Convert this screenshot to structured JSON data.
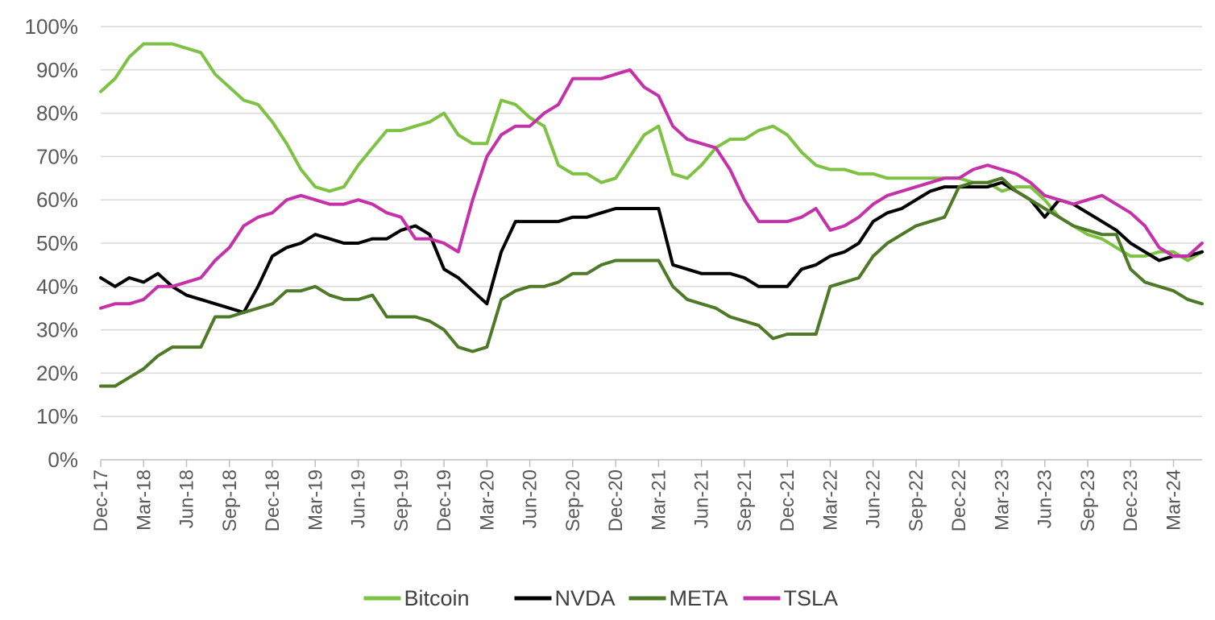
{
  "chart_data": {
    "type": "line",
    "title": "",
    "xlabel": "",
    "ylabel": "",
    "ylim": [
      0,
      100
    ],
    "y_ticks": [
      "0%",
      "10%",
      "20%",
      "30%",
      "40%",
      "50%",
      "60%",
      "70%",
      "80%",
      "90%",
      "100%"
    ],
    "x_ticks": [
      "Dec-17",
      "Mar-18",
      "Jun-18",
      "Sep-18",
      "Dec-18",
      "Mar-19",
      "Jun-19",
      "Sep-19",
      "Dec-19",
      "Mar-20",
      "Jun-20",
      "Sep-20",
      "Dec-20",
      "Mar-21",
      "Jun-21",
      "Sep-21",
      "Dec-21",
      "Mar-22",
      "Jun-22",
      "Sep-22",
      "Dec-22",
      "Mar-23",
      "Jun-23",
      "Sep-23",
      "Dec-23",
      "Mar-24"
    ],
    "x_domain": [
      "Dec-17",
      "May-24"
    ],
    "grid": true,
    "legend_position": "bottom",
    "series": [
      {
        "name": "Bitcoin",
        "color": "#7dc242",
        "x": [
          "Dec-17",
          "Jan-18",
          "Feb-18",
          "Mar-18",
          "Apr-18",
          "May-18",
          "Jun-18",
          "Jul-18",
          "Aug-18",
          "Sep-18",
          "Oct-18",
          "Nov-18",
          "Dec-18",
          "Jan-19",
          "Feb-19",
          "Mar-19",
          "Apr-19",
          "May-19",
          "Jun-19",
          "Jul-19",
          "Aug-19",
          "Sep-19",
          "Oct-19",
          "Nov-19",
          "Dec-19",
          "Jan-20",
          "Feb-20",
          "Mar-20",
          "Apr-20",
          "May-20",
          "Jun-20",
          "Jul-20",
          "Aug-20",
          "Sep-20",
          "Oct-20",
          "Nov-20",
          "Dec-20",
          "Jan-21",
          "Feb-21",
          "Mar-21",
          "Apr-21",
          "May-21",
          "Jun-21",
          "Jul-21",
          "Aug-21",
          "Sep-21",
          "Oct-21",
          "Nov-21",
          "Dec-21",
          "Jan-22",
          "Feb-22",
          "Mar-22",
          "Apr-22",
          "May-22",
          "Jun-22",
          "Jul-22",
          "Aug-22",
          "Sep-22",
          "Oct-22",
          "Nov-22",
          "Dec-22",
          "Jan-23",
          "Feb-23",
          "Mar-23",
          "Apr-23",
          "May-23",
          "Jun-23",
          "Jul-23",
          "Aug-23",
          "Sep-23",
          "Oct-23",
          "Nov-23",
          "Dec-23",
          "Jan-24",
          "Feb-24",
          "Mar-24",
          "Apr-24",
          "May-24"
        ],
        "values": [
          85,
          88,
          93,
          96,
          96,
          96,
          95,
          94,
          89,
          86,
          83,
          82,
          78,
          73,
          67,
          63,
          62,
          63,
          68,
          72,
          76,
          76,
          77,
          78,
          80,
          75,
          73,
          73,
          83,
          82,
          79,
          77,
          68,
          66,
          66,
          64,
          65,
          70,
          75,
          77,
          66,
          65,
          68,
          72,
          74,
          74,
          76,
          77,
          75,
          71,
          68,
          67,
          67,
          66,
          66,
          65,
          65,
          65,
          65,
          65,
          65,
          64,
          64,
          62,
          63,
          63,
          60,
          56,
          54,
          52,
          51,
          49,
          47,
          47,
          48,
          48,
          46,
          48
        ]
      },
      {
        "name": "NVDA",
        "color": "#000000",
        "x": [
          "Dec-17",
          "Jan-18",
          "Feb-18",
          "Mar-18",
          "Apr-18",
          "May-18",
          "Jun-18",
          "Jul-18",
          "Aug-18",
          "Sep-18",
          "Oct-18",
          "Nov-18",
          "Dec-18",
          "Jan-19",
          "Feb-19",
          "Mar-19",
          "Apr-19",
          "May-19",
          "Jun-19",
          "Jul-19",
          "Aug-19",
          "Sep-19",
          "Oct-19",
          "Nov-19",
          "Dec-19",
          "Jan-20",
          "Feb-20",
          "Mar-20",
          "Apr-20",
          "May-20",
          "Jun-20",
          "Jul-20",
          "Aug-20",
          "Sep-20",
          "Oct-20",
          "Nov-20",
          "Dec-20",
          "Jan-21",
          "Feb-21",
          "Mar-21",
          "Apr-21",
          "May-21",
          "Jun-21",
          "Jul-21",
          "Aug-21",
          "Sep-21",
          "Oct-21",
          "Nov-21",
          "Dec-21",
          "Jan-22",
          "Feb-22",
          "Mar-22",
          "Apr-22",
          "May-22",
          "Jun-22",
          "Jul-22",
          "Aug-22",
          "Sep-22",
          "Oct-22",
          "Nov-22",
          "Dec-22",
          "Jan-23",
          "Feb-23",
          "Mar-23",
          "Apr-23",
          "May-23",
          "Jun-23",
          "Jul-23",
          "Aug-23",
          "Sep-23",
          "Oct-23",
          "Nov-23",
          "Dec-23",
          "Jan-24",
          "Feb-24",
          "Mar-24",
          "Apr-24",
          "May-24"
        ],
        "values": [
          42,
          40,
          42,
          41,
          43,
          40,
          38,
          37,
          36,
          35,
          34,
          40,
          47,
          49,
          50,
          52,
          51,
          50,
          50,
          51,
          51,
          53,
          54,
          52,
          44,
          42,
          39,
          36,
          48,
          55,
          55,
          55,
          55,
          56,
          56,
          57,
          58,
          58,
          58,
          58,
          45,
          44,
          43,
          43,
          43,
          42,
          40,
          40,
          40,
          44,
          45,
          47,
          48,
          50,
          55,
          57,
          58,
          60,
          62,
          63,
          63,
          63,
          63,
          64,
          62,
          60,
          56,
          60,
          59,
          57,
          55,
          53,
          50,
          48,
          46,
          47,
          47,
          48
        ]
      },
      {
        "name": "META",
        "color": "#4e7a27",
        "x": [
          "Dec-17",
          "Jan-18",
          "Feb-18",
          "Mar-18",
          "Apr-18",
          "May-18",
          "Jun-18",
          "Jul-18",
          "Aug-18",
          "Sep-18",
          "Oct-18",
          "Nov-18",
          "Dec-18",
          "Jan-19",
          "Feb-19",
          "Mar-19",
          "Apr-19",
          "May-19",
          "Jun-19",
          "Jul-19",
          "Aug-19",
          "Sep-19",
          "Oct-19",
          "Nov-19",
          "Dec-19",
          "Jan-20",
          "Feb-20",
          "Mar-20",
          "Apr-20",
          "May-20",
          "Jun-20",
          "Jul-20",
          "Aug-20",
          "Sep-20",
          "Oct-20",
          "Nov-20",
          "Dec-20",
          "Jan-21",
          "Feb-21",
          "Mar-21",
          "Apr-21",
          "May-21",
          "Jun-21",
          "Jul-21",
          "Aug-21",
          "Sep-21",
          "Oct-21",
          "Nov-21",
          "Dec-21",
          "Jan-22",
          "Feb-22",
          "Mar-22",
          "Apr-22",
          "May-22",
          "Jun-22",
          "Jul-22",
          "Aug-22",
          "Sep-22",
          "Oct-22",
          "Nov-22",
          "Dec-22",
          "Jan-23",
          "Feb-23",
          "Mar-23",
          "Apr-23",
          "May-23",
          "Jun-23",
          "Jul-23",
          "Aug-23",
          "Sep-23",
          "Oct-23",
          "Nov-23",
          "Dec-23",
          "Jan-24",
          "Feb-24",
          "Mar-24",
          "Apr-24",
          "May-24"
        ],
        "values": [
          17,
          17,
          19,
          21,
          24,
          26,
          26,
          26,
          33,
          33,
          34,
          35,
          36,
          39,
          39,
          40,
          38,
          37,
          37,
          38,
          33,
          33,
          33,
          32,
          30,
          26,
          25,
          26,
          37,
          39,
          40,
          40,
          41,
          43,
          43,
          45,
          46,
          46,
          46,
          46,
          40,
          37,
          36,
          35,
          33,
          32,
          31,
          28,
          29,
          29,
          29,
          40,
          41,
          42,
          47,
          50,
          52,
          54,
          55,
          56,
          63,
          64,
          64,
          65,
          62,
          60,
          58,
          56,
          54,
          53,
          52,
          52,
          44,
          41,
          40,
          39,
          37,
          36
        ]
      },
      {
        "name": "TSLA",
        "color": "#c531a9",
        "x": [
          "Dec-17",
          "Jan-18",
          "Feb-18",
          "Mar-18",
          "Apr-18",
          "May-18",
          "Jun-18",
          "Jul-18",
          "Aug-18",
          "Sep-18",
          "Oct-18",
          "Nov-18",
          "Dec-18",
          "Jan-19",
          "Feb-19",
          "Mar-19",
          "Apr-19",
          "May-19",
          "Jun-19",
          "Jul-19",
          "Aug-19",
          "Sep-19",
          "Oct-19",
          "Nov-19",
          "Dec-19",
          "Jan-20",
          "Feb-20",
          "Mar-20",
          "Apr-20",
          "May-20",
          "Jun-20",
          "Jul-20",
          "Aug-20",
          "Sep-20",
          "Oct-20",
          "Nov-20",
          "Dec-20",
          "Jan-21",
          "Feb-21",
          "Mar-21",
          "Apr-21",
          "May-21",
          "Jun-21",
          "Jul-21",
          "Aug-21",
          "Sep-21",
          "Oct-21",
          "Nov-21",
          "Dec-21",
          "Jan-22",
          "Feb-22",
          "Mar-22",
          "Apr-22",
          "May-22",
          "Jun-22",
          "Jul-22",
          "Aug-22",
          "Sep-22",
          "Oct-22",
          "Nov-22",
          "Dec-22",
          "Jan-23",
          "Feb-23",
          "Mar-23",
          "Apr-23",
          "May-23",
          "Jun-23",
          "Jul-23",
          "Aug-23",
          "Sep-23",
          "Oct-23",
          "Nov-23",
          "Dec-23",
          "Jan-24",
          "Feb-24",
          "Mar-24",
          "Apr-24",
          "May-24"
        ],
        "values": [
          35,
          36,
          36,
          37,
          40,
          40,
          41,
          42,
          46,
          49,
          54,
          56,
          57,
          60,
          61,
          60,
          59,
          59,
          60,
          59,
          57,
          56,
          51,
          51,
          50,
          48,
          60,
          70,
          75,
          77,
          77,
          80,
          82,
          88,
          88,
          88,
          89,
          90,
          86,
          84,
          77,
          74,
          73,
          72,
          67,
          60,
          55,
          55,
          55,
          56,
          58,
          53,
          54,
          56,
          59,
          61,
          62,
          63,
          64,
          65,
          65,
          67,
          68,
          67,
          66,
          64,
          61,
          60,
          59,
          60,
          61,
          59,
          57,
          54,
          49,
          47,
          47,
          50
        ]
      }
    ]
  }
}
